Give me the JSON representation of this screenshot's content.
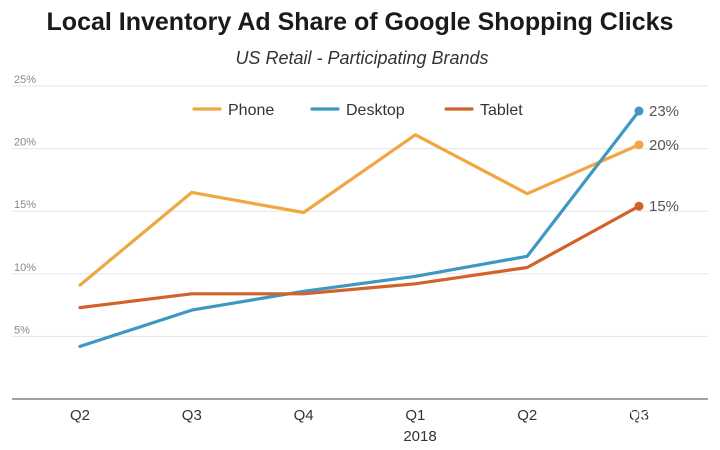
{
  "chart_data": {
    "type": "line",
    "title": "Local Inventory Ad Share of Google Shopping Clicks",
    "subtitle": "US Retail - Participating Brands",
    "categories": [
      "Q2",
      "Q3",
      "Q4",
      "Q1",
      "Q2",
      "Q3"
    ],
    "x_group_label": "2018",
    "y_ticks": [
      "5%",
      "10%",
      "15%",
      "20%",
      "25%"
    ],
    "ylim": [
      0,
      25
    ],
    "grid": true,
    "legend": "top-center",
    "series": [
      {
        "name": "Phone",
        "color": "#f0a742",
        "values": [
          9.1,
          16.5,
          14.9,
          21.1,
          16.4,
          20.3
        ],
        "end_label": "20%"
      },
      {
        "name": "Desktop",
        "color": "#3f97c2",
        "values": [
          4.2,
          7.1,
          8.6,
          9.8,
          11.4,
          23.0
        ],
        "end_label": "23%"
      },
      {
        "name": "Tablet",
        "color": "#d2622b",
        "values": [
          7.3,
          8.4,
          8.4,
          9.2,
          10.5,
          15.4
        ],
        "end_label": "15%"
      }
    ]
  },
  "watermark": "知乎 @MoReting"
}
